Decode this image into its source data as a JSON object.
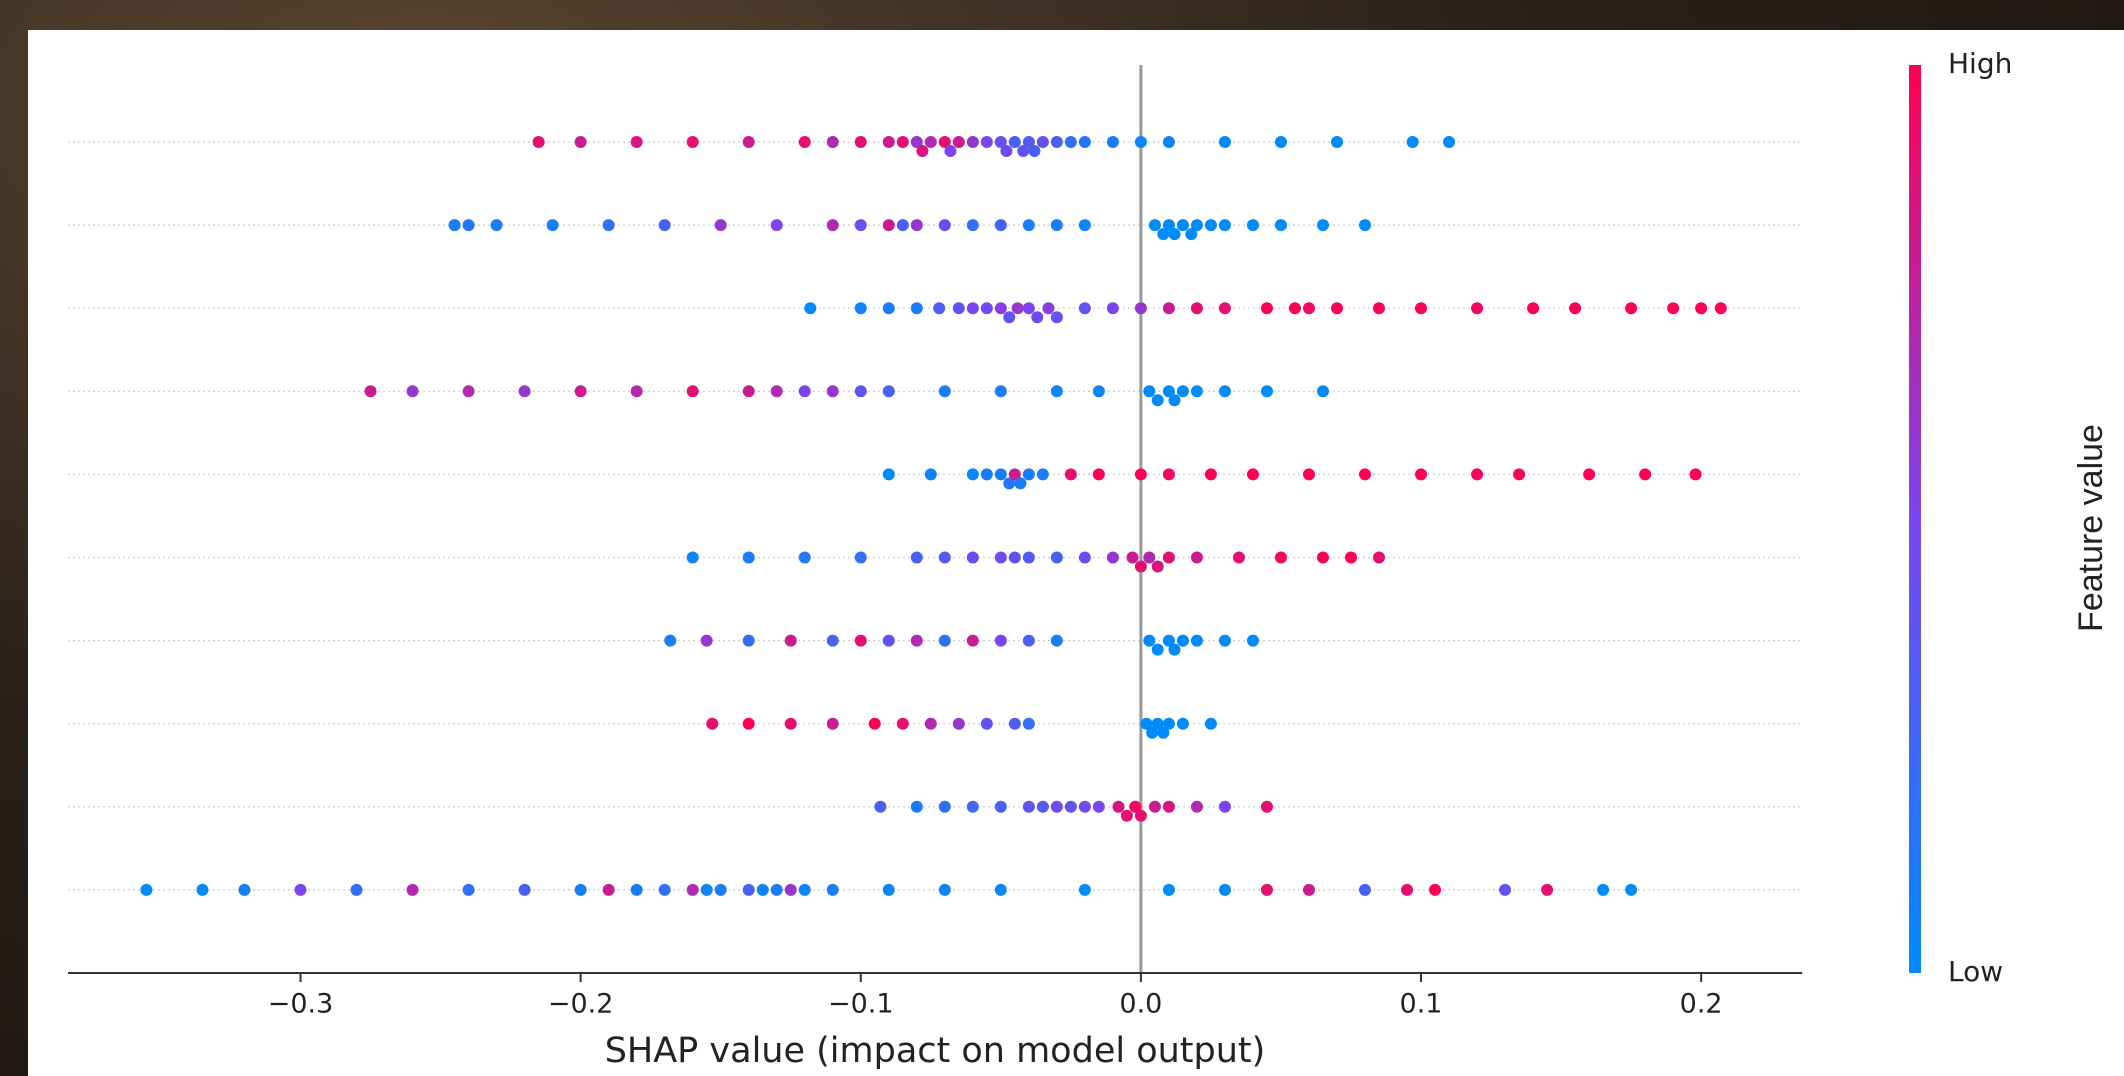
{
  "chart_data": {
    "type": "beeswarm",
    "xlabel": "SHAP value (impact on model output)",
    "xlim": [
      -0.383,
      0.236
    ],
    "xticks": [
      {
        "value": -0.3,
        "label": "−0.3"
      },
      {
        "value": -0.2,
        "label": "−0.2"
      },
      {
        "value": -0.1,
        "label": "−0.1"
      },
      {
        "value": 0,
        "label": "0.0"
      },
      0.1,
      0.2
    ],
    "zero_line": true,
    "colorbar": {
      "high": "High",
      "low": "Low",
      "label": "Feature value",
      "colors": [
        "#008bfb",
        "#7b44ee",
        "#ff0052"
      ]
    },
    "series": [
      {
        "values": [
          -0.215,
          -0.2,
          -0.18,
          -0.16,
          -0.14,
          -0.12,
          -0.11,
          -0.1,
          -0.09,
          -0.085,
          -0.08,
          -0.078,
          -0.075,
          -0.07,
          -0.068,
          -0.065,
          -0.06,
          -0.055,
          -0.05,
          -0.048,
          -0.045,
          -0.042,
          -0.04,
          -0.038,
          -0.035,
          -0.03,
          -0.025,
          -0.02,
          -0.01,
          0.0,
          0.01,
          0.03,
          0.05,
          0.07,
          0.097,
          0.11
        ],
        "feature_values": [
          0.9,
          0.8,
          0.85,
          0.9,
          0.8,
          0.9,
          0.7,
          0.9,
          0.8,
          0.9,
          0.6,
          0.85,
          0.7,
          0.9,
          0.5,
          0.8,
          0.6,
          0.5,
          0.4,
          0.45,
          0.3,
          0.4,
          0.35,
          0.3,
          0.4,
          0.3,
          0.2,
          0.15,
          0.1,
          0.05,
          0.05,
          0,
          0,
          0,
          0,
          0
        ]
      },
      {
        "values": [
          -0.245,
          -0.24,
          -0.23,
          -0.21,
          -0.19,
          -0.17,
          -0.15,
          -0.13,
          -0.11,
          -0.1,
          -0.09,
          -0.085,
          -0.08,
          -0.07,
          -0.06,
          -0.05,
          -0.04,
          -0.03,
          -0.02,
          0.005,
          0.008,
          0.01,
          0.012,
          0.015,
          0.018,
          0.02,
          0.025,
          0.03,
          0.04,
          0.05,
          0.065,
          0.08
        ],
        "feature_values": [
          0.1,
          0.15,
          0.1,
          0.1,
          0.2,
          0.3,
          0.6,
          0.5,
          0.7,
          0.4,
          0.8,
          0.3,
          0.6,
          0.4,
          0.2,
          0.3,
          0.1,
          0.1,
          0.05,
          0,
          0,
          0,
          0,
          0,
          0,
          0,
          0,
          0,
          0,
          0,
          0,
          0
        ]
      },
      {
        "values": [
          -0.118,
          -0.1,
          -0.09,
          -0.08,
          -0.072,
          -0.065,
          -0.06,
          -0.055,
          -0.05,
          -0.047,
          -0.044,
          -0.04,
          -0.037,
          -0.033,
          -0.03,
          -0.02,
          -0.01,
          0.0,
          0.01,
          0.02,
          0.03,
          0.045,
          0.055,
          0.06,
          0.07,
          0.085,
          0.1,
          0.12,
          0.14,
          0.155,
          0.175,
          0.19,
          0.2,
          0.207
        ],
        "feature_values": [
          0,
          0.05,
          0.1,
          0.1,
          0.3,
          0.4,
          0.5,
          0.45,
          0.55,
          0.4,
          0.6,
          0.5,
          0.45,
          0.55,
          0.4,
          0.4,
          0.5,
          0.6,
          0.8,
          0.9,
          0.9,
          1,
          1,
          0.95,
          1,
          1,
          1,
          0.95,
          1,
          1,
          1,
          1,
          1,
          1
        ]
      },
      {
        "values": [
          -0.275,
          -0.26,
          -0.24,
          -0.22,
          -0.2,
          -0.18,
          -0.16,
          -0.14,
          -0.13,
          -0.12,
          -0.11,
          -0.1,
          -0.09,
          -0.07,
          -0.05,
          -0.03,
          -0.015,
          0.003,
          0.006,
          0.01,
          0.012,
          0.015,
          0.02,
          0.03,
          0.045,
          0.065
        ],
        "feature_values": [
          0.8,
          0.6,
          0.7,
          0.6,
          0.8,
          0.7,
          0.9,
          0.8,
          0.7,
          0.5,
          0.6,
          0.4,
          0.3,
          0.1,
          0.1,
          0.05,
          0.05,
          0,
          0,
          0,
          0,
          0,
          0,
          0,
          0,
          0
        ]
      },
      {
        "values": [
          -0.09,
          -0.075,
          -0.06,
          -0.055,
          -0.05,
          -0.047,
          -0.045,
          -0.043,
          -0.04,
          -0.035,
          -0.025,
          -0.015,
          0.0,
          0.01,
          0.025,
          0.04,
          0.06,
          0.08,
          0.1,
          0.12,
          0.135,
          0.16,
          0.18,
          0.198
        ],
        "feature_values": [
          0,
          0.05,
          0.05,
          0.1,
          0.1,
          0.15,
          0.8,
          0.1,
          0.1,
          0.1,
          0.9,
          1,
          1,
          0.95,
          1,
          1,
          1,
          1,
          1,
          0.95,
          1,
          1,
          1,
          1
        ]
      },
      {
        "values": [
          -0.16,
          -0.14,
          -0.12,
          -0.1,
          -0.08,
          -0.07,
          -0.06,
          -0.05,
          -0.045,
          -0.04,
          -0.03,
          -0.02,
          -0.01,
          -0.003,
          0.0,
          0.003,
          0.006,
          0.01,
          0.02,
          0.035,
          0.05,
          0.065,
          0.075,
          0.085
        ],
        "feature_values": [
          0.05,
          0.1,
          0.15,
          0.2,
          0.3,
          0.35,
          0.4,
          0.45,
          0.4,
          0.35,
          0.3,
          0.4,
          0.6,
          0.8,
          0.9,
          0.7,
          0.85,
          0.9,
          0.8,
          0.9,
          0.95,
          1,
          1,
          0.9
        ]
      },
      {
        "values": [
          -0.168,
          -0.155,
          -0.14,
          -0.125,
          -0.11,
          -0.1,
          -0.09,
          -0.08,
          -0.07,
          -0.06,
          -0.05,
          -0.04,
          -0.03,
          0.003,
          0.006,
          0.01,
          0.012,
          0.015,
          0.02,
          0.03,
          0.04
        ],
        "feature_values": [
          0.1,
          0.6,
          0.2,
          0.8,
          0.3,
          0.9,
          0.4,
          0.7,
          0.2,
          0.8,
          0.5,
          0.3,
          0.1,
          0,
          0,
          0,
          0,
          0,
          0,
          0,
          0
        ]
      },
      {
        "values": [
          -0.153,
          -0.14,
          -0.125,
          -0.11,
          -0.095,
          -0.085,
          -0.075,
          -0.065,
          -0.055,
          -0.045,
          -0.04,
          0.002,
          0.004,
          0.006,
          0.008,
          0.01,
          0.015,
          0.025
        ],
        "feature_values": [
          0.9,
          1,
          0.9,
          0.8,
          1,
          0.9,
          0.7,
          0.6,
          0.4,
          0.3,
          0.2,
          0,
          0,
          0,
          0,
          0,
          0,
          0
        ]
      },
      {
        "values": [
          -0.093,
          -0.08,
          -0.07,
          -0.06,
          -0.05,
          -0.04,
          -0.035,
          -0.03,
          -0.025,
          -0.02,
          -0.015,
          -0.008,
          -0.005,
          -0.002,
          0.0,
          0.005,
          0.01,
          0.02,
          0.03,
          0.045
        ],
        "feature_values": [
          0.3,
          0.1,
          0.2,
          0.25,
          0.3,
          0.4,
          0.35,
          0.45,
          0.4,
          0.45,
          0.5,
          0.85,
          0.9,
          0.95,
          0.9,
          0.8,
          0.85,
          0.7,
          0.5,
          0.9
        ]
      },
      {
        "values": [
          -0.355,
          -0.335,
          -0.32,
          -0.3,
          -0.28,
          -0.26,
          -0.24,
          -0.22,
          -0.2,
          -0.19,
          -0.18,
          -0.17,
          -0.16,
          -0.155,
          -0.15,
          -0.14,
          -0.135,
          -0.13,
          -0.125,
          -0.12,
          -0.11,
          -0.09,
          -0.07,
          -0.05,
          -0.02,
          0.01,
          0.03,
          0.045,
          0.06,
          0.08,
          0.095,
          0.105,
          0.13,
          0.145,
          0.165,
          0.175
        ],
        "feature_values": [
          0,
          0,
          0.1,
          0.5,
          0.2,
          0.7,
          0.2,
          0.3,
          0.1,
          0.8,
          0.1,
          0.2,
          0.7,
          0.05,
          0.1,
          0.3,
          0.05,
          0.1,
          0.6,
          0.05,
          0.1,
          0.05,
          0.05,
          0.05,
          0,
          0,
          0,
          0.9,
          0.8,
          0.3,
          0.9,
          1,
          0.4,
          0.9,
          0,
          0
        ]
      }
    ]
  }
}
